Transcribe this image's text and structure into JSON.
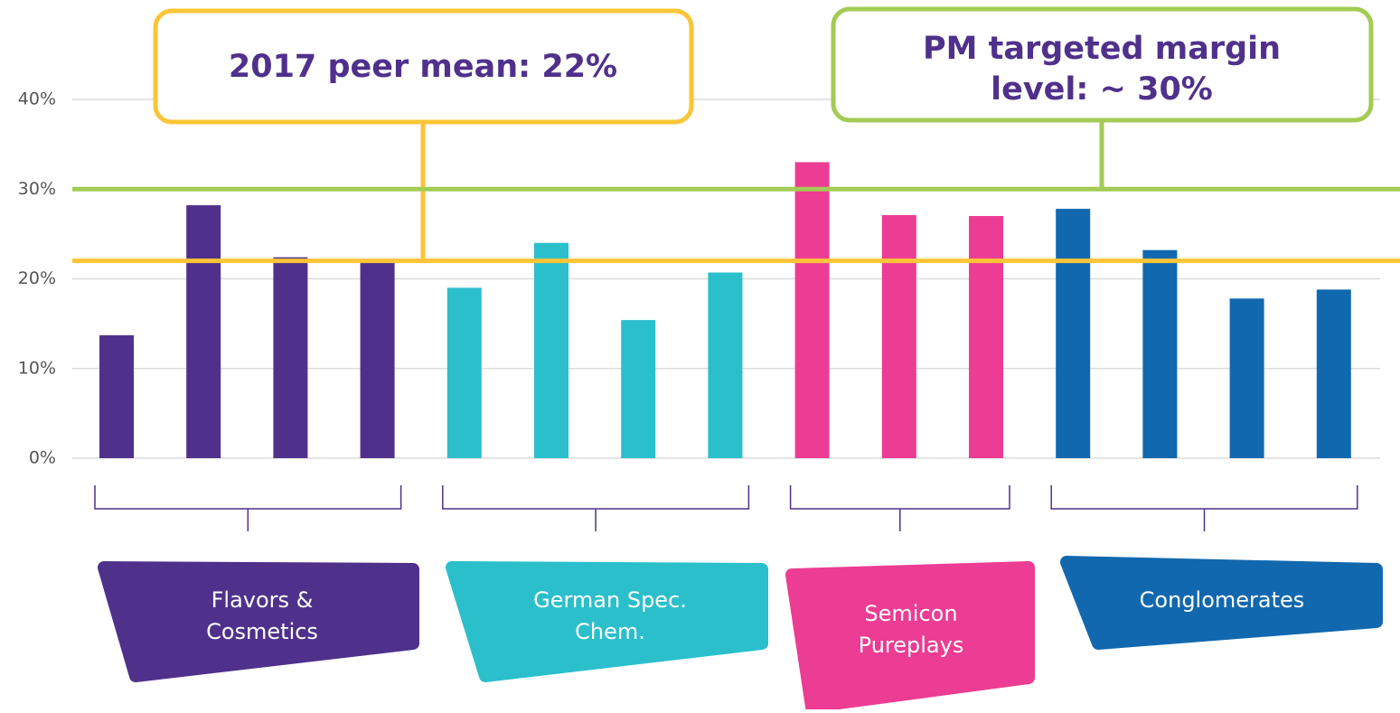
{
  "chart_data": {
    "type": "bar",
    "ylim": [
      0,
      40
    ],
    "yticks": [
      {
        "value": 0,
        "label": "0%"
      },
      {
        "value": 10,
        "label": "10%"
      },
      {
        "value": 20,
        "label": "20%"
      },
      {
        "value": 30,
        "label": "30%"
      },
      {
        "value": 40,
        "label": "40%"
      }
    ],
    "grid": true,
    "groups": [
      {
        "name": [
          "Flavors &",
          "Cosmetics"
        ],
        "color": "#4f318c",
        "values": [
          13.7,
          28.2,
          22.4,
          22.1
        ]
      },
      {
        "name": [
          "German Spec.",
          "Chem."
        ],
        "color": "#2bbfcc",
        "values": [
          19,
          24,
          15.4,
          20.7
        ]
      },
      {
        "name": [
          "Semicon",
          "Pureplays"
        ],
        "color": "#ec3c93",
        "values": [
          33,
          27.1,
          27
        ]
      },
      {
        "name": [
          "Conglomerates"
        ],
        "color": "#1168af",
        "values": [
          27.8,
          23.2,
          17.8,
          18.8
        ]
      }
    ],
    "reference_lines": [
      {
        "value": 22,
        "color": "#fbc537",
        "label": [
          "2017 peer mean: 22%"
        ]
      },
      {
        "value": 30,
        "color": "#a4cb55",
        "label": [
          "PM targeted margin",
          "level: ~ 30%"
        ]
      }
    ]
  }
}
